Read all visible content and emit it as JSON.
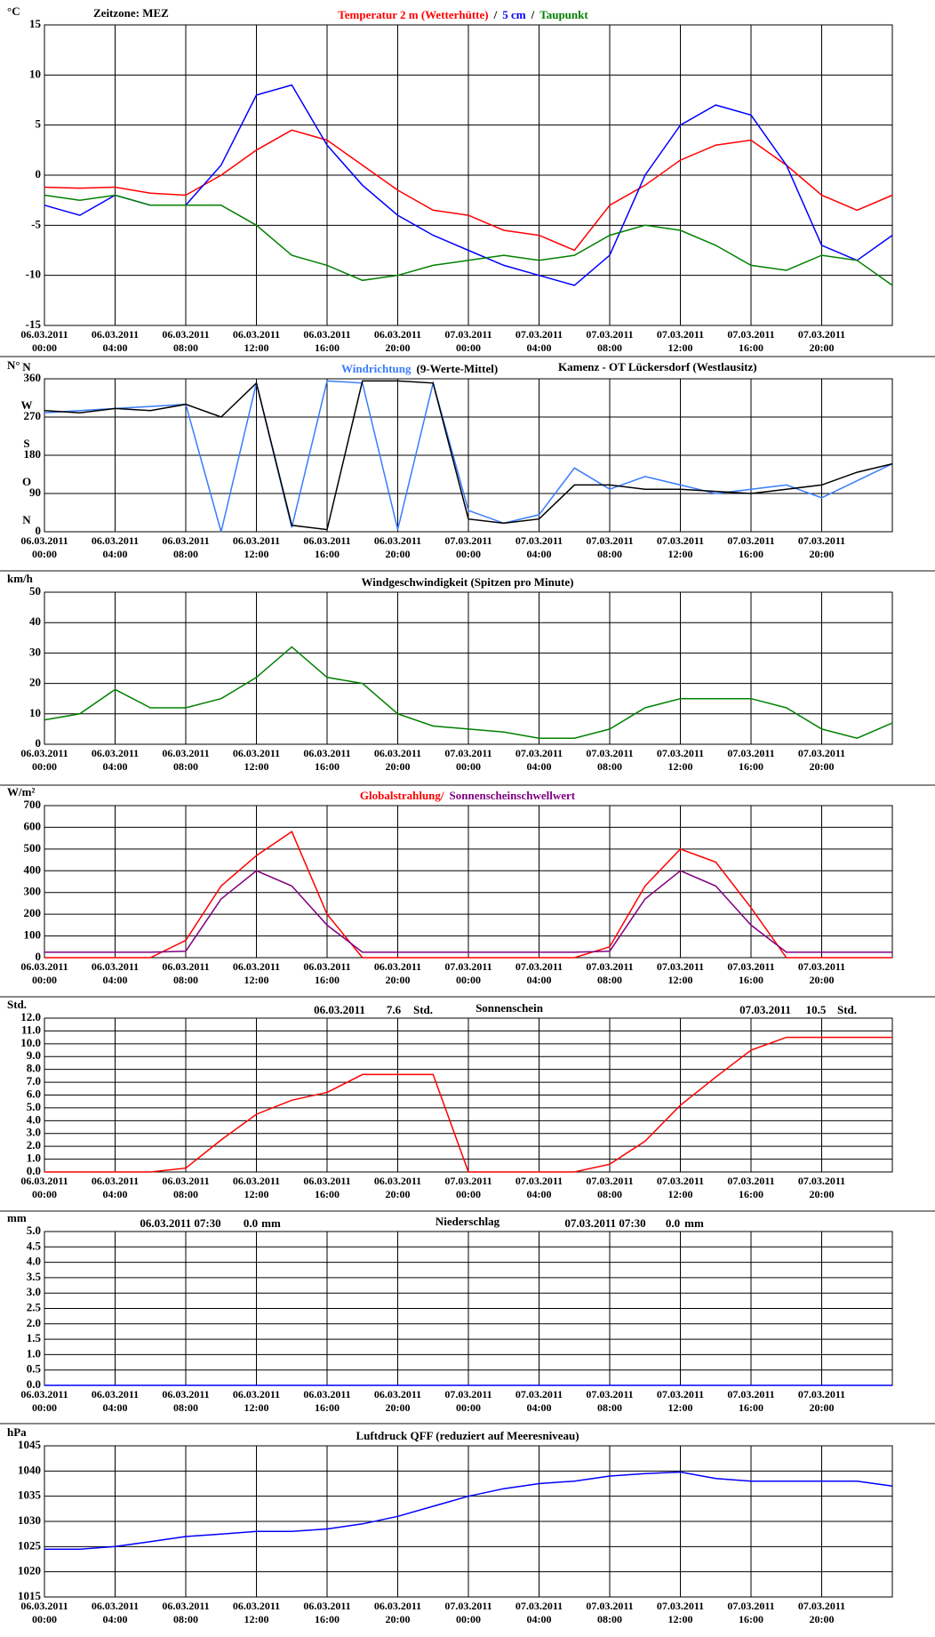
{
  "chart_data": [
    {
      "type": "line",
      "y_label": "°C",
      "annotation": "Zeitzone: MEZ",
      "title_separator": "/",
      "x": [
        0,
        2,
        4,
        6,
        8,
        10,
        12,
        14,
        16,
        18,
        20,
        22,
        24,
        26,
        28,
        30,
        32,
        34,
        36,
        38,
        40,
        42,
        44,
        46,
        48
      ],
      "xlim": [
        0,
        48
      ],
      "xticks": [
        {
          "value": 0,
          "label": "06.03.2011 00:00"
        },
        {
          "value": 4,
          "label": "06.03.2011 04:00"
        },
        {
          "value": 8,
          "label": "06.03.2011 08:00"
        },
        {
          "value": 12,
          "label": "06.03.2011 12:00"
        },
        {
          "value": 16,
          "label": "06.03.2011 16:00"
        },
        {
          "value": 20,
          "label": "06.03.2011 20:00"
        },
        {
          "value": 24,
          "label": "07.03.2011 00:00"
        },
        {
          "value": 28,
          "label": "07.03.2011 04:00"
        },
        {
          "value": 32,
          "label": "07.03.2011 08:00"
        },
        {
          "value": 36,
          "label": "07.03.2011 12:00"
        },
        {
          "value": 40,
          "label": "07.03.2011 16:00"
        },
        {
          "value": 44,
          "label": "07.03.2011 20:00"
        }
      ],
      "ylim": [
        -15,
        15
      ],
      "yticks": [
        -15,
        -10,
        -5,
        0,
        5,
        10,
        15
      ],
      "grid": true,
      "series": [
        {
          "name": "Temperatur 2 m (Wetterhütte)",
          "color": "#ff0000",
          "values": [
            -1.2,
            -1.3,
            -1.2,
            -1.8,
            -2,
            0,
            2.5,
            4.5,
            3.5,
            1,
            -1.5,
            -3.5,
            -4,
            -5.5,
            -6,
            -7.5,
            -3,
            -1,
            1.5,
            3,
            3.5,
            1,
            -2,
            -3.5,
            -2
          ]
        },
        {
          "name": "5 cm",
          "color": "#0000ff",
          "values": [
            -3,
            -4,
            -2,
            -3,
            -3,
            1,
            8,
            9,
            3,
            -1,
            -4,
            -6,
            -7.5,
            -9,
            -10,
            -11,
            -8,
            0,
            5,
            7,
            6,
            1,
            -7,
            -8.5,
            -6
          ]
        },
        {
          "name": "Taupunkt",
          "color": "#008000",
          "values": [
            -2,
            -2.5,
            -2,
            -3,
            -3,
            -3,
            -5,
            -8,
            -9,
            -10.5,
            -10,
            -9,
            -8.5,
            -8,
            -8.5,
            -8,
            -6,
            -5,
            -5.5,
            -7,
            -9,
            -9.5,
            -8,
            -8.5,
            -11
          ]
        }
      ]
    },
    {
      "type": "line",
      "y_label": "N°",
      "annotation": "Kamenz - OT Lückersdorf (Westlausitz)",
      "x": [
        0,
        2,
        4,
        6,
        8,
        10,
        12,
        14,
        16,
        18,
        20,
        22,
        24,
        26,
        28,
        30,
        32,
        34,
        36,
        38,
        40,
        42,
        44,
        46,
        48
      ],
      "xlim": [
        0,
        48
      ],
      "xticks": [
        {
          "value": 0,
          "label": "06.03.2011 00:00"
        },
        {
          "value": 4,
          "label": "06.03.2011 04:00"
        },
        {
          "value": 8,
          "label": "06.03.2011 08:00"
        },
        {
          "value": 12,
          "label": "06.03.2011 12:00"
        },
        {
          "value": 16,
          "label": "06.03.2011 16:00"
        },
        {
          "value": 20,
          "label": "06.03.2011 20:00"
        },
        {
          "value": 24,
          "label": "07.03.2011 00:00"
        },
        {
          "value": 28,
          "label": "07.03.2011 04:00"
        },
        {
          "value": 32,
          "label": "07.03.2011 08:00"
        },
        {
          "value": 36,
          "label": "07.03.2011 12:00"
        },
        {
          "value": 40,
          "label": "07.03.2011 16:00"
        },
        {
          "value": 44,
          "label": "07.03.2011 20:00"
        }
      ],
      "ylim": [
        0,
        360
      ],
      "yticks": [
        0,
        90,
        180,
        270,
        360
      ],
      "grid": true,
      "compass_ticks": [
        {
          "value": 0,
          "label": "N"
        },
        {
          "value": 90,
          "label": "O"
        },
        {
          "value": 180,
          "label": "S"
        },
        {
          "value": 270,
          "label": "W"
        },
        {
          "value": 360,
          "label": "N"
        }
      ],
      "series": [
        {
          "name": "Windrichtung",
          "color": "#3a7cff",
          "values": [
            280,
            285,
            290,
            295,
            300,
            0,
            350,
            10,
            355,
            350,
            5,
            350,
            50,
            20,
            40,
            150,
            100,
            130,
            110,
            90,
            100,
            110,
            80,
            120,
            160
          ]
        },
        {
          "name": "(9-Werte-Mittel)",
          "color": "#000000",
          "values": [
            285,
            280,
            290,
            285,
            300,
            270,
            350,
            15,
            5,
            355,
            355,
            350,
            30,
            20,
            30,
            110,
            110,
            100,
            100,
            95,
            90,
            100,
            110,
            140,
            160
          ]
        }
      ]
    },
    {
      "type": "line",
      "y_label": "km/h",
      "title": "Windgeschwindigkeit (Spitzen pro Minute)",
      "x": [
        0,
        2,
        4,
        6,
        8,
        10,
        12,
        14,
        16,
        18,
        20,
        22,
        24,
        26,
        28,
        30,
        32,
        34,
        36,
        38,
        40,
        42,
        44,
        46,
        48
      ],
      "xlim": [
        0,
        48
      ],
      "xticks": [
        {
          "value": 0,
          "label": "06.03.2011 00:00"
        },
        {
          "value": 4,
          "label": "06.03.2011 04:00"
        },
        {
          "value": 8,
          "label": "06.03.2011 08:00"
        },
        {
          "value": 12,
          "label": "06.03.2011 12:00"
        },
        {
          "value": 16,
          "label": "06.03.2011 16:00"
        },
        {
          "value": 20,
          "label": "06.03.2011 20:00"
        },
        {
          "value": 24,
          "label": "07.03.2011 00:00"
        },
        {
          "value": 28,
          "label": "07.03.2011 04:00"
        },
        {
          "value": 32,
          "label": "07.03.2011 08:00"
        },
        {
          "value": 36,
          "label": "07.03.2011 12:00"
        },
        {
          "value": 40,
          "label": "07.03.2011 16:00"
        },
        {
          "value": 44,
          "label": "07.03.2011 20:00"
        }
      ],
      "ylim": [
        0,
        50
      ],
      "yticks": [
        0,
        10,
        20,
        30,
        40,
        50
      ],
      "grid": true,
      "color": "#008000",
      "values": [
        8,
        10,
        18,
        12,
        12,
        15,
        22,
        32,
        22,
        20,
        10,
        6,
        5,
        4,
        2,
        2,
        5,
        12,
        15,
        15,
        15,
        12,
        5,
        2,
        7
      ]
    },
    {
      "type": "line",
      "y_label": "W/m²",
      "x": [
        0,
        2,
        4,
        6,
        8,
        10,
        12,
        14,
        16,
        18,
        20,
        22,
        24,
        26,
        28,
        30,
        32,
        34,
        36,
        38,
        40,
        42,
        44,
        46,
        48
      ],
      "xlim": [
        0,
        48
      ],
      "xticks": [
        {
          "value": 0,
          "label": "06.03.2011 00:00"
        },
        {
          "value": 4,
          "label": "06.03.2011 04:00"
        },
        {
          "value": 8,
          "label": "06.03.2011 08:00"
        },
        {
          "value": 12,
          "label": "06.03.2011 12:00"
        },
        {
          "value": 16,
          "label": "06.03.2011 16:00"
        },
        {
          "value": 20,
          "label": "06.03.2011 20:00"
        },
        {
          "value": 24,
          "label": "07.03.2011 00:00"
        },
        {
          "value": 28,
          "label": "07.03.2011 04:00"
        },
        {
          "value": 32,
          "label": "07.03.2011 08:00"
        },
        {
          "value": 36,
          "label": "07.03.2011 12:00"
        },
        {
          "value": 40,
          "label": "07.03.2011 16:00"
        },
        {
          "value": 44,
          "label": "07.03.2011 20:00"
        }
      ],
      "ylim": [
        0,
        700
      ],
      "yticks": [
        0,
        100,
        200,
        300,
        400,
        500,
        600,
        700
      ],
      "grid": true,
      "series": [
        {
          "name": "Globalstrahlung/",
          "color": "#ff0000",
          "values": [
            0,
            0,
            0,
            0,
            80,
            330,
            470,
            580,
            200,
            0,
            0,
            0,
            0,
            0,
            0,
            0,
            50,
            330,
            500,
            440,
            230,
            0,
            0,
            0,
            0
          ]
        },
        {
          "name": "Sonnenscheinschwellwert",
          "color": "#800080",
          "values": [
            25,
            25,
            25,
            25,
            30,
            270,
            400,
            330,
            150,
            25,
            25,
            25,
            25,
            25,
            25,
            25,
            30,
            270,
            400,
            330,
            150,
            25,
            25,
            25,
            25
          ]
        }
      ]
    },
    {
      "type": "line",
      "y_label": "Std.",
      "title": "Sonnenschein",
      "annotations": [
        "06.03.2011",
        "7.6",
        "Std.",
        "07.03.2011",
        "10.5",
        "Std."
      ],
      "x": [
        0,
        2,
        4,
        6,
        8,
        10,
        12,
        14,
        16,
        18,
        20,
        22,
        24,
        26,
        28,
        30,
        32,
        34,
        36,
        38,
        40,
        42,
        44,
        46,
        48
      ],
      "xlim": [
        0,
        48
      ],
      "xticks": [
        {
          "value": 0,
          "label": "06.03.2011 00:00"
        },
        {
          "value": 4,
          "label": "06.03.2011 04:00"
        },
        {
          "value": 8,
          "label": "06.03.2011 08:00"
        },
        {
          "value": 12,
          "label": "06.03.2011 12:00"
        },
        {
          "value": 16,
          "label": "06.03.2011 16:00"
        },
        {
          "value": 20,
          "label": "06.03.2011 20:00"
        },
        {
          "value": 24,
          "label": "07.03.2011 00:00"
        },
        {
          "value": 28,
          "label": "07.03.2011 04:00"
        },
        {
          "value": 32,
          "label": "07.03.2011 08:00"
        },
        {
          "value": 36,
          "label": "07.03.2011 12:00"
        },
        {
          "value": 40,
          "label": "07.03.2011 16:00"
        },
        {
          "value": 44,
          "label": "07.03.2011 20:00"
        }
      ],
      "ylim": [
        0,
        12
      ],
      "yticks": [
        {
          "value": 0,
          "label": "0.0"
        },
        {
          "value": 1,
          "label": "1.0"
        },
        {
          "value": 2,
          "label": "2.0"
        },
        {
          "value": 3,
          "label": "3.0"
        },
        {
          "value": 4,
          "label": "4.0"
        },
        {
          "value": 5,
          "label": "5.0"
        },
        {
          "value": 6,
          "label": "6.0"
        },
        {
          "value": 7,
          "label": "7.0"
        },
        {
          "value": 8,
          "label": "8.0"
        },
        {
          "value": 9,
          "label": "9.0"
        },
        {
          "value": 10,
          "label": "10.0"
        },
        {
          "value": 11,
          "label": "11.0"
        },
        {
          "value": 12,
          "label": "12.0"
        }
      ],
      "grid": true,
      "color": "#ff0000",
      "values": [
        0,
        0,
        0,
        0,
        0.3,
        2.5,
        4.5,
        5.6,
        6.2,
        7.6,
        7.6,
        7.6,
        0,
        0,
        0,
        0,
        0.6,
        2.4,
        5.2,
        7.4,
        9.5,
        10.5,
        10.5,
        10.5,
        10.5
      ]
    },
    {
      "type": "line",
      "y_label": "mm",
      "title": "Niederschlag",
      "annotations": [
        "06.03.2011 07:30",
        "0.0",
        "mm",
        "07.03.2011 07:30",
        "0.0",
        "mm"
      ],
      "x": [
        0,
        2,
        4,
        6,
        8,
        10,
        12,
        14,
        16,
        18,
        20,
        22,
        24,
        26,
        28,
        30,
        32,
        34,
        36,
        38,
        40,
        42,
        44,
        46,
        48
      ],
      "xlim": [
        0,
        48
      ],
      "xticks": [
        {
          "value": 0,
          "label": "06.03.2011 00:00"
        },
        {
          "value": 4,
          "label": "06.03.2011 04:00"
        },
        {
          "value": 8,
          "label": "06.03.2011 08:00"
        },
        {
          "value": 12,
          "label": "06.03.2011 12:00"
        },
        {
          "value": 16,
          "label": "06.03.2011 16:00"
        },
        {
          "value": 20,
          "label": "06.03.2011 20:00"
        },
        {
          "value": 24,
          "label": "07.03.2011 00:00"
        },
        {
          "value": 28,
          "label": "07.03.2011 04:00"
        },
        {
          "value": 32,
          "label": "07.03.2011 08:00"
        },
        {
          "value": 36,
          "label": "07.03.2011 12:00"
        },
        {
          "value": 40,
          "label": "07.03.2011 16:00"
        },
        {
          "value": 44,
          "label": "07.03.2011 20:00"
        }
      ],
      "ylim": [
        0,
        5
      ],
      "yticks": [
        {
          "value": 0,
          "label": "0.0"
        },
        {
          "value": 0.5,
          "label": "0.5"
        },
        {
          "value": 1,
          "label": "1.0"
        },
        {
          "value": 1.5,
          "label": "1.5"
        },
        {
          "value": 2,
          "label": "2.0"
        },
        {
          "value": 2.5,
          "label": "2.5"
        },
        {
          "value": 3,
          "label": "3.0"
        },
        {
          "value": 3.5,
          "label": "3.5"
        },
        {
          "value": 4,
          "label": "4.0"
        },
        {
          "value": 4.5,
          "label": "4.5"
        },
        {
          "value": 5,
          "label": "5.0"
        }
      ],
      "grid": true,
      "color": "#0000ff",
      "values": [
        0,
        0,
        0,
        0,
        0,
        0,
        0,
        0,
        0,
        0,
        0,
        0,
        0,
        0,
        0,
        0,
        0,
        0,
        0,
        0,
        0,
        0,
        0,
        0,
        0
      ]
    },
    {
      "type": "line",
      "y_label": "hPa",
      "title": "Luftdruck QFF (reduziert auf Meeresniveau)",
      "x": [
        0,
        2,
        4,
        6,
        8,
        10,
        12,
        14,
        16,
        18,
        20,
        22,
        24,
        26,
        28,
        30,
        32,
        34,
        36,
        38,
        40,
        42,
        44,
        46,
        48
      ],
      "xlim": [
        0,
        48
      ],
      "xticks": [
        {
          "value": 0,
          "label": "06.03.2011 00:00"
        },
        {
          "value": 4,
          "label": "06.03.2011 04:00"
        },
        {
          "value": 8,
          "label": "06.03.2011 08:00"
        },
        {
          "value": 12,
          "label": "06.03.2011 12:00"
        },
        {
          "value": 16,
          "label": "06.03.2011 16:00"
        },
        {
          "value": 20,
          "label": "06.03.2011 20:00"
        },
        {
          "value": 24,
          "label": "07.03.2011 00:00"
        },
        {
          "value": 28,
          "label": "07.03.2011 04:00"
        },
        {
          "value": 32,
          "label": "07.03.2011 08:00"
        },
        {
          "value": 36,
          "label": "07.03.2011 12:00"
        },
        {
          "value": 40,
          "label": "07.03.2011 16:00"
        },
        {
          "value": 44,
          "label": "07.03.2011 20:00"
        }
      ],
      "ylim": [
        1015,
        1045
      ],
      "yticks": [
        1015,
        1020,
        1025,
        1030,
        1035,
        1040,
        1045
      ],
      "grid": true,
      "color": "#0000ff",
      "values": [
        1024.5,
        1024.5,
        1025,
        1026,
        1027,
        1027.5,
        1028,
        1028,
        1028.5,
        1029.5,
        1031,
        1033,
        1035,
        1036.5,
        1037.5,
        1038,
        1039,
        1039.5,
        1039.8,
        1038.5,
        1038,
        1038,
        1038,
        1038,
        1037
      ]
    }
  ]
}
